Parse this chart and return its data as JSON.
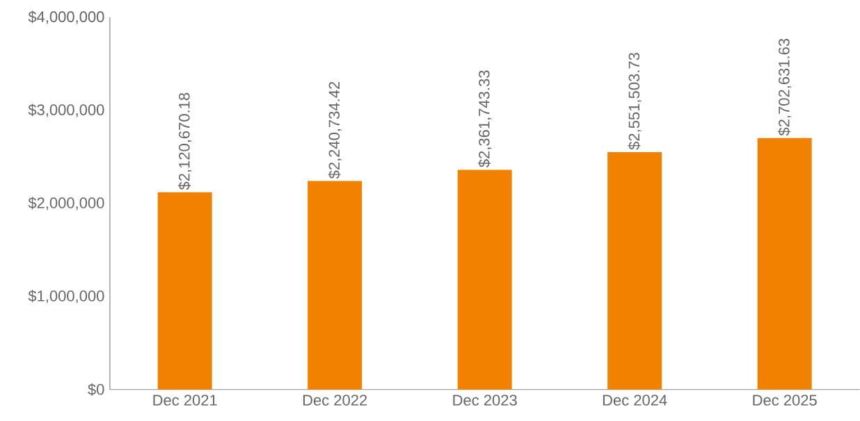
{
  "chart_data": {
    "type": "bar",
    "categories": [
      "Dec 2021",
      "Dec 2022",
      "Dec 2023",
      "Dec 2024",
      "Dec 2025"
    ],
    "values": [
      2120670.18,
      2240734.42,
      2361743.33,
      2551503.73,
      2702631.63
    ],
    "value_labels": [
      "$2,120,670.18",
      "$2,240,734.42",
      "$2,361,743.33",
      "$2,551,503.73",
      "$2,702,631.63"
    ],
    "color": "#f28100",
    "ylim": [
      0,
      4000000
    ],
    "yticks": [
      {
        "value": 0,
        "label": "$0"
      },
      {
        "value": 1000000,
        "label": "$1,000,000"
      },
      {
        "value": 2000000,
        "label": "$2,000,000"
      },
      {
        "value": 3000000,
        "label": "$3,000,000"
      },
      {
        "value": 4000000,
        "label": "$4,000,000"
      }
    ]
  }
}
